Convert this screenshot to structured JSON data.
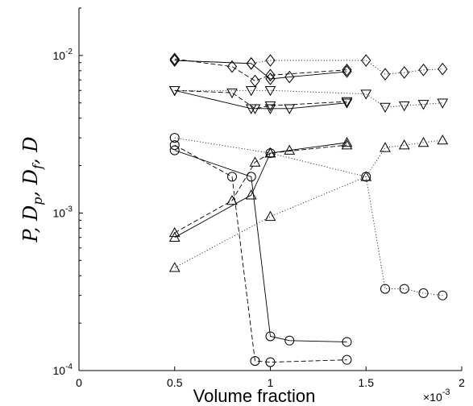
{
  "chart_data": {
    "type": "line",
    "xlabel": "Volume fraction",
    "ylabel": "P, D_p, D_f, D",
    "x_multiplier_label": "×10",
    "x_multiplier_exponent": "-3",
    "x_scale": "linear",
    "y_scale": "log",
    "xlim": [
      0,
      2
    ],
    "ylim": [
      0.0001,
      0.02
    ],
    "x_ticks": [
      {
        "value": 0,
        "label": "0"
      },
      {
        "value": 0.5,
        "label": "0.5"
      },
      {
        "value": 1,
        "label": "1"
      },
      {
        "value": 1.5,
        "label": "1.5"
      },
      {
        "value": 2,
        "label": "2"
      }
    ],
    "y_ticks": [
      {
        "value": 0.0001,
        "base": "10",
        "exp": "-4"
      },
      {
        "value": 0.001,
        "base": "10",
        "exp": "-3"
      },
      {
        "value": 0.01,
        "base": "10",
        "exp": "-2"
      }
    ],
    "grid": false,
    "legend": "none",
    "series": [
      {
        "marker": "diamond",
        "line": "solid",
        "x": [
          0.5,
          0.9,
          1.0,
          1.1,
          1.4
        ],
        "y": [
          0.0093,
          0.0089,
          0.0071,
          0.0073,
          0.0079
        ]
      },
      {
        "marker": "diamond",
        "line": "dashed",
        "x": [
          0.5,
          0.8,
          0.92,
          1.0,
          1.4
        ],
        "y": [
          0.0095,
          0.0085,
          0.0069,
          0.0075,
          0.0081
        ]
      },
      {
        "marker": "diamond",
        "line": "dotted",
        "x": [
          0.5,
          0.9,
          1.0,
          1.5,
          1.6,
          1.7,
          1.8,
          1.9
        ],
        "y": [
          0.0093,
          0.0089,
          0.0093,
          0.0093,
          0.0076,
          0.0078,
          0.0081,
          0.0082
        ]
      },
      {
        "marker": "triangle-down",
        "line": "solid",
        "x": [
          0.5,
          0.9,
          1.0,
          1.1,
          1.4
        ],
        "y": [
          0.006,
          0.0046,
          0.0046,
          0.0046,
          0.005
        ]
      },
      {
        "marker": "triangle-down",
        "line": "dashed",
        "x": [
          0.5,
          0.8,
          0.92,
          1.0,
          1.4
        ],
        "y": [
          0.006,
          0.0058,
          0.0046,
          0.0048,
          0.0051
        ]
      },
      {
        "marker": "triangle-down",
        "line": "dotted",
        "x": [
          0.5,
          0.9,
          1.0,
          1.5,
          1.6,
          1.7,
          1.8,
          1.9
        ],
        "y": [
          0.006,
          0.006,
          0.006,
          0.0057,
          0.0047,
          0.0048,
          0.0049,
          0.005
        ]
      },
      {
        "marker": "circle",
        "line": "solid",
        "x": [
          0.5,
          0.9,
          1.0,
          1.1,
          1.4
        ],
        "y": [
          0.0025,
          0.0017,
          0.000165,
          0.000155,
          0.000152
        ]
      },
      {
        "marker": "circle",
        "line": "dashed",
        "x": [
          0.5,
          0.8,
          0.92,
          1.0,
          1.4
        ],
        "y": [
          0.0027,
          0.0017,
          0.000115,
          0.000113,
          0.000117
        ]
      },
      {
        "marker": "circle",
        "line": "dotted",
        "x": [
          0.5,
          1.0,
          1.5,
          1.6,
          1.7,
          1.8,
          1.9
        ],
        "y": [
          0.003,
          0.0024,
          0.0017,
          0.00033,
          0.00033,
          0.00031,
          0.0003
        ]
      },
      {
        "marker": "triangle-up",
        "line": "solid",
        "x": [
          0.5,
          0.9,
          1.0,
          1.1,
          1.4
        ],
        "y": [
          0.0007,
          0.0013,
          0.0024,
          0.0025,
          0.0028
        ]
      },
      {
        "marker": "triangle-up",
        "line": "dashed",
        "x": [
          0.5,
          0.8,
          0.92,
          1.0,
          1.4
        ],
        "y": [
          0.00075,
          0.0012,
          0.0021,
          0.0024,
          0.0027
        ]
      },
      {
        "marker": "triangle-up",
        "line": "dotted",
        "x": [
          0.5,
          1.0,
          1.5,
          1.6,
          1.7,
          1.8,
          1.9
        ],
        "y": [
          0.00045,
          0.00095,
          0.0017,
          0.0026,
          0.0027,
          0.0028,
          0.0029
        ]
      }
    ]
  }
}
